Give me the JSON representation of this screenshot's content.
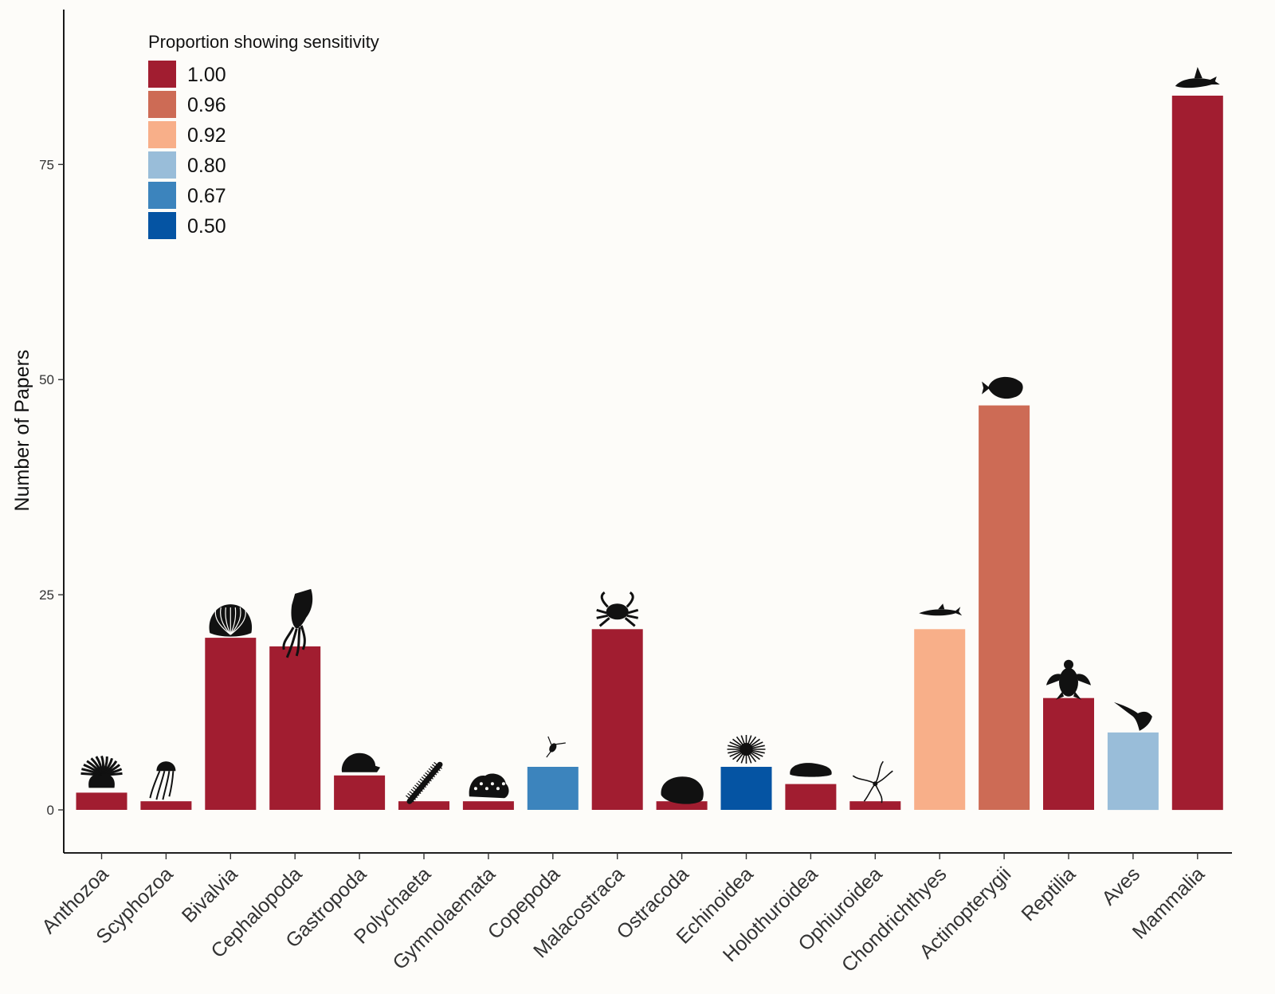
{
  "chart_data": {
    "type": "bar",
    "title": "",
    "xlabel": "",
    "ylabel": "Number of Papers",
    "ylim": [
      -5,
      93
    ],
    "yticks": [
      0,
      25,
      50,
      75
    ],
    "grid": false,
    "legend_placement": "top-left",
    "legend": {
      "title": "Proportion showing sensitivity",
      "entries": [
        {
          "label": "1.00",
          "color": "#a11d30"
        },
        {
          "label": "0.96",
          "color": "#cd6b55"
        },
        {
          "label": "0.92",
          "color": "#f8af89"
        },
        {
          "label": "0.80",
          "color": "#99bdd9"
        },
        {
          "label": "0.67",
          "color": "#3c84bd"
        },
        {
          "label": "0.50",
          "color": "#0554a3"
        }
      ]
    },
    "categories": [
      "Anthozoa",
      "Scyphozoa",
      "Bivalvia",
      "Cephalopoda",
      "Gastropoda",
      "Polychaeta",
      "Gymnolaemata",
      "Copepoda",
      "Malacostraca",
      "Ostracoda",
      "Echinoidea",
      "Holothuroidea",
      "Ophiuroidea",
      "Chondrichthyes",
      "Actinopterygii",
      "Reptilia",
      "Aves",
      "Mammalia"
    ],
    "values": [
      2,
      1,
      20,
      19,
      4,
      1,
      1,
      5,
      21,
      1,
      5,
      3,
      1,
      21,
      47,
      13,
      9,
      83
    ],
    "proportion": [
      "1.00",
      "1.00",
      "1.00",
      "1.00",
      "1.00",
      "1.00",
      "1.00",
      "0.67",
      "1.00",
      "1.00",
      "0.50",
      "1.00",
      "1.00",
      "0.92",
      "0.96",
      "1.00",
      "0.80",
      "1.00"
    ],
    "icons": [
      "sea-anemone-icon",
      "jellyfish-icon",
      "clam-icon",
      "squid-icon",
      "snail-icon",
      "bristle-worm-icon",
      "bryozoan-icon",
      "copepod-icon",
      "crab-icon",
      "ostracod-icon",
      "sea-urchin-icon",
      "sea-cucumber-icon",
      "brittle-star-icon",
      "shark-icon",
      "fish-icon",
      "sea-turtle-icon",
      "seabird-icon",
      "orca-icon"
    ]
  }
}
